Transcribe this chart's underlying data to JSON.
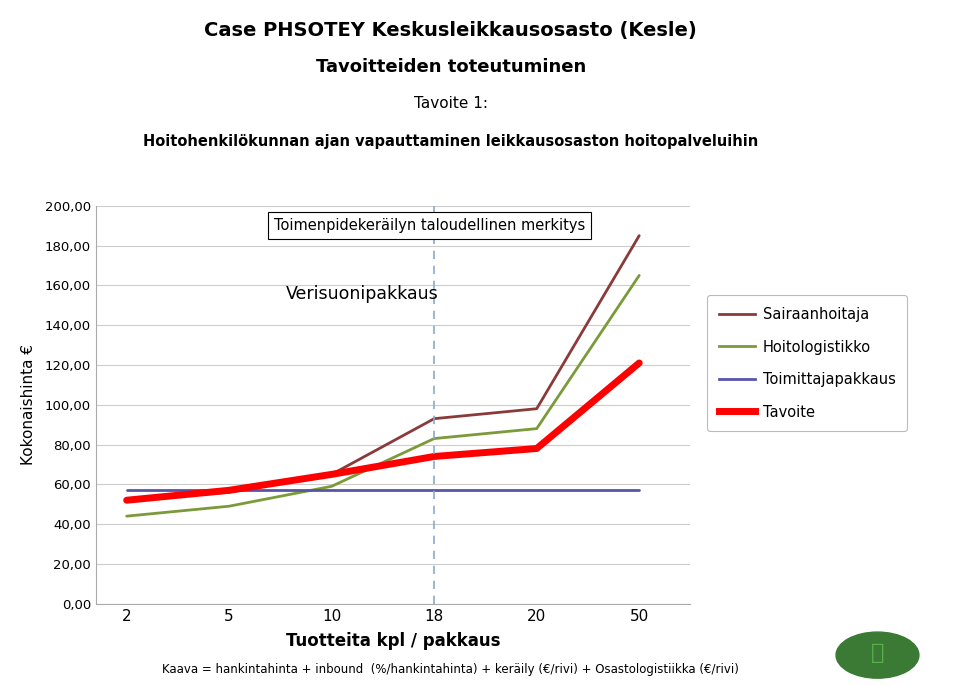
{
  "title_line1": "Case PHSOTEY Keskusleikkausosasto (Kesle)",
  "title_line2": "Tavoitteiden toteutuminen",
  "title_line3": "Tavoite 1:",
  "title_line4": "Hoitohenkilökunnan ajan vapauttaminen leikkausosaston hoitopalveluihin",
  "xlabel": "Tuotteita kpl / pakkaus",
  "ylabel": "Kokonaishinta €",
  "footer": "Kaava = hankintahinta + inbound  (%/hankintahinta) + keräily (€/rivi) + Osastologistiikka (€/rivi)",
  "annotation_box": "Toimenpidekeräilyn taloudellinen merkitys",
  "annotation_text": "Verisuonipakkaus",
  "x_labels": [
    "2",
    "5",
    "10",
    "18",
    "20",
    "50"
  ],
  "ylim": [
    0,
    200
  ],
  "yticks": [
    0,
    20,
    40,
    60,
    80,
    100,
    120,
    140,
    160,
    180,
    200
  ],
  "ytick_labels": [
    "0,00",
    "20,00",
    "40,00",
    "60,00",
    "80,00",
    "100,00",
    "120,00",
    "140,00",
    "160,00",
    "180,00",
    "200,00"
  ],
  "dashed_vline_idx": 3,
  "series": {
    "Sairaanhoitaja": {
      "values": [
        52,
        56,
        65,
        93,
        98,
        185
      ],
      "color": "#8B3A3A",
      "linewidth": 2.0
    },
    "Hoitologistikko": {
      "values": [
        44,
        49,
        59,
        83,
        88,
        165
      ],
      "color": "#7B9B3A",
      "linewidth": 2.0
    },
    "Toimittajapakkaus": {
      "values": [
        57,
        57,
        57,
        57,
        57,
        57
      ],
      "color": "#5555AA",
      "linewidth": 2.0
    },
    "Tavoite": {
      "values": [
        52,
        57,
        65,
        74,
        78,
        121
      ],
      "color": "#FF0000",
      "linewidth": 5.0
    }
  },
  "background_color": "#FFFFFF",
  "plot_bg_color": "#FFFFFF",
  "grid_color": "#CCCCCC",
  "figsize": [
    9.59,
    6.86
  ],
  "dpi": 100
}
